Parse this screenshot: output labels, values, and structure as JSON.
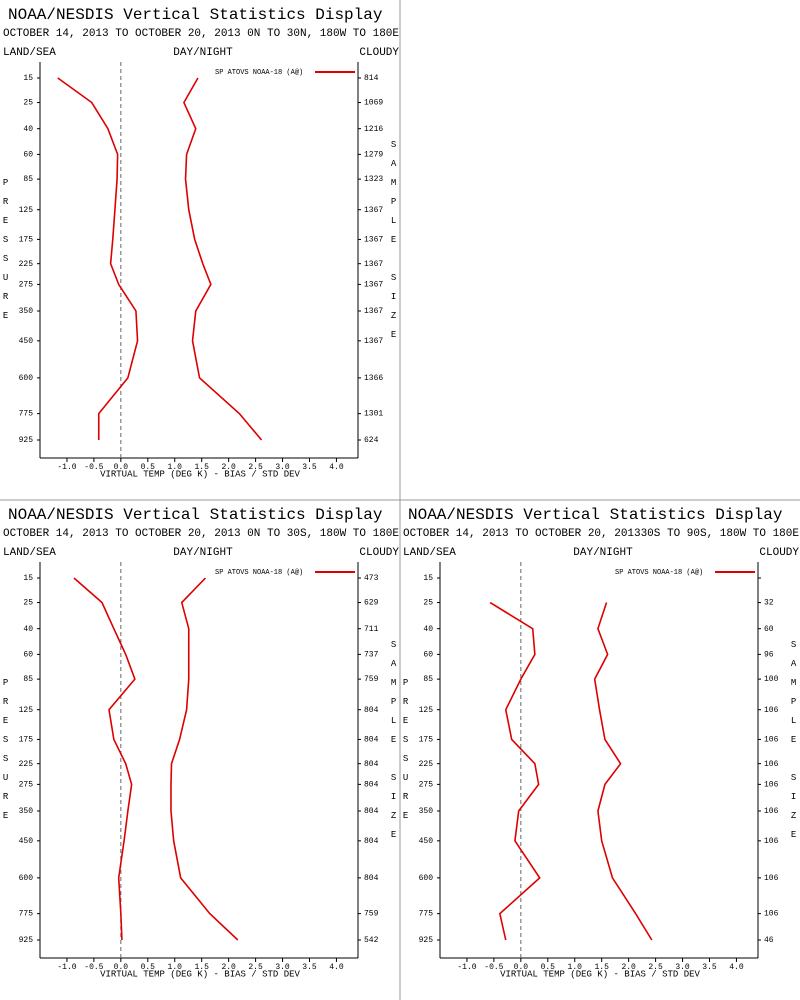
{
  "chart_data": [
    {
      "type": "line",
      "title": "NOAA/NESDIS Vertical Statistics Display",
      "date_range": "OCTOBER 14, 2013 TO OCTOBER 20, 2013",
      "region": "0N TO 30N, 180W TO 180E",
      "land_sea": "LAND/SEA",
      "day_night": "DAY/NIGHT",
      "cloudy": "CLOUDY",
      "legend": "SP ATOVS NOAA-18 (A@)",
      "y_label": "PRESSURE",
      "y2_label": "SAMPLE SIZE",
      "x_label": "VIRTUAL TEMP (DEG K) - BIAS / STD DEV",
      "categories": [
        15,
        25,
        40,
        60,
        85,
        125,
        175,
        225,
        275,
        350,
        450,
        600,
        775,
        925
      ],
      "sample_size": [
        814,
        1069,
        1216,
        1279,
        1323,
        1367,
        1367,
        1367,
        1367,
        1367,
        1367,
        1366,
        1301,
        624
      ],
      "series": [
        {
          "color": "#dd0000",
          "values": [
            -1.17,
            -0.54,
            -0.24,
            -0.06,
            -0.07,
            -0.11,
            -0.15,
            -0.19,
            -0.04,
            0.28,
            0.31,
            0.13,
            -0.41,
            -0.41
          ]
        },
        {
          "color": "#dd0000",
          "values": [
            1.43,
            1.17,
            1.39,
            1.22,
            1.2,
            1.26,
            1.37,
            1.52,
            1.67,
            1.39,
            1.33,
            1.46,
            2.2,
            2.61
          ]
        }
      ],
      "xlim": [
        -1.5,
        4.4
      ],
      "xticks": [
        {
          "value": -1,
          "label": "-1.0"
        },
        -0.5,
        {
          "value": 0,
          "label": "0.0"
        },
        0.5,
        {
          "value": 1,
          "label": "1.0"
        },
        1.5,
        {
          "value": 2,
          "label": "2.0"
        },
        2.5,
        {
          "value": 3,
          "label": "3.0"
        },
        3.5,
        {
          "value": 4,
          "label": "4.0"
        }
      ],
      "reference_line": 0
    },
    {
      "type": "line",
      "title": "NOAA/NESDIS Vertical Statistics Display",
      "date_range": "OCTOBER 14, 2013 TO OCTOBER 20, 2013",
      "region": "0N TO 30S, 180W TO 180E",
      "land_sea": "LAND/SEA",
      "day_night": "DAY/NIGHT",
      "cloudy": "CLOUDY",
      "legend": "SP ATOVS NOAA-18 (A@)",
      "y_label": "PRESSURE",
      "y2_label": "SAMPLE SIZE",
      "x_label": "VIRTUAL TEMP (DEG K) - BIAS / STD DEV",
      "categories": [
        15,
        25,
        40,
        60,
        85,
        125,
        175,
        225,
        275,
        350,
        450,
        600,
        775,
        925
      ],
      "sample_size": [
        473,
        629,
        711,
        737,
        759,
        804,
        804,
        804,
        804,
        804,
        804,
        804,
        759,
        542
      ],
      "series": [
        {
          "color": "#dd0000",
          "values": [
            -0.87,
            -0.35,
            -0.13,
            0.09,
            0.26,
            -0.22,
            -0.13,
            0.09,
            0.2,
            0.13,
            0.06,
            -0.04,
            0,
            0.02
          ]
        },
        {
          "color": "#dd0000",
          "values": [
            1.57,
            1.13,
            1.26,
            1.26,
            1.26,
            1.22,
            1.09,
            0.94,
            0.93,
            0.93,
            0.98,
            1.11,
            1.65,
            2.17
          ]
        }
      ],
      "xlim": [
        -1.5,
        4.4
      ],
      "xticks": [
        {
          "value": -1,
          "label": "-1.0"
        },
        -0.5,
        {
          "value": 0,
          "label": "0.0"
        },
        0.5,
        {
          "value": 1,
          "label": "1.0"
        },
        1.5,
        {
          "value": 2,
          "label": "2.0"
        },
        2.5,
        {
          "value": 3,
          "label": "3.0"
        },
        3.5,
        {
          "value": 4,
          "label": "4.0"
        }
      ],
      "reference_line": 0
    },
    {
      "type": "line",
      "title": "NOAA/NESDIS Vertical Statistics Display",
      "date_range": "OCTOBER 14, 2013 TO OCTOBER 20, 2013",
      "region": "30S TO 90S, 180W TO 180E",
      "land_sea": "LAND/SEA",
      "day_night": "DAY/NIGHT",
      "cloudy": "CLOUDY",
      "legend": "SP ATOVS NOAA-18 (A@)",
      "y_label": "PRESSURE",
      "y2_label": "SAMPLE SIZE",
      "x_label": "VIRTUAL TEMP (DEG K) - BIAS / STD DEV",
      "categories": [
        15,
        25,
        40,
        60,
        85,
        125,
        175,
        225,
        275,
        350,
        450,
        600,
        775,
        925
      ],
      "sample_size": [
        null,
        32,
        60,
        96,
        100,
        106,
        106,
        106,
        106,
        106,
        106,
        106,
        106,
        46
      ],
      "series": [
        {
          "color": "#dd0000",
          "values": [
            null,
            -0.57,
            0.22,
            0.26,
            0,
            -0.28,
            -0.17,
            0.26,
            0.33,
            -0.04,
            -0.11,
            0.35,
            -0.39,
            -0.28
          ]
        },
        {
          "color": "#dd0000",
          "values": [
            null,
            1.59,
            1.43,
            1.61,
            1.37,
            1.46,
            1.56,
            1.85,
            1.56,
            1.43,
            1.5,
            1.7,
            2.13,
            2.43
          ]
        }
      ],
      "xlim": [
        -1.5,
        4.4
      ],
      "xticks": [
        {
          "value": -1,
          "label": "-1.0"
        },
        -0.5,
        {
          "value": 0,
          "label": "0.0"
        },
        0.5,
        {
          "value": 1,
          "label": "1.0"
        },
        1.5,
        {
          "value": 2,
          "label": "2.0"
        },
        2.5,
        {
          "value": 3,
          "label": "3.0"
        },
        3.5,
        {
          "value": 4,
          "label": "4.0"
        }
      ],
      "reference_line": 0
    }
  ]
}
